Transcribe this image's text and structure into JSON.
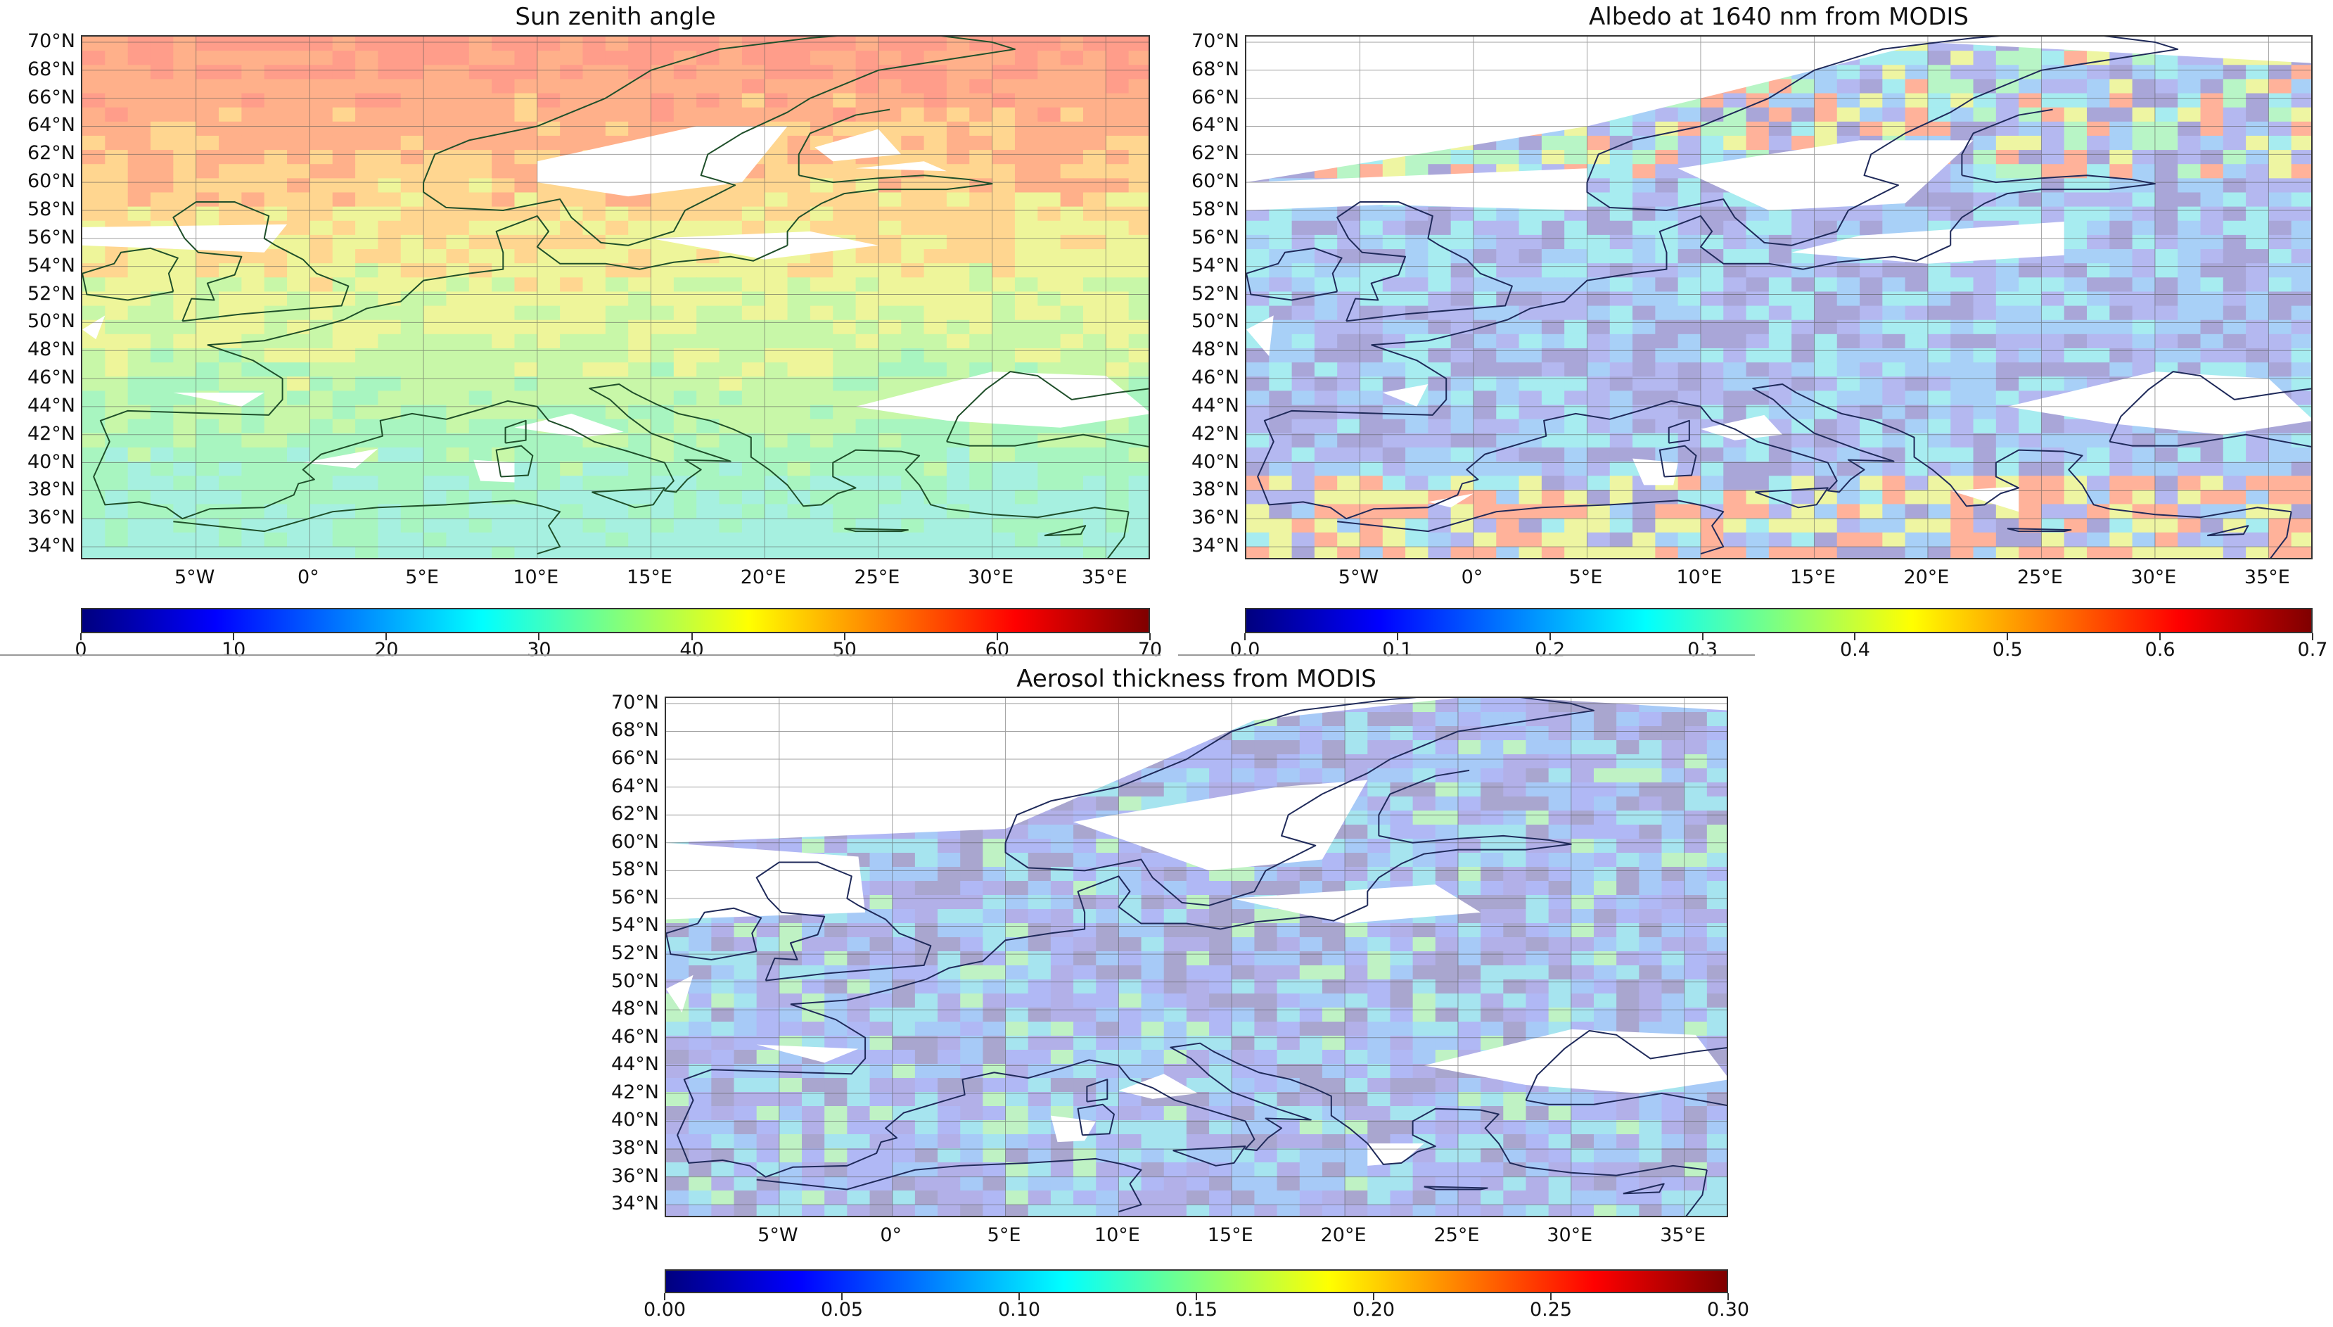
{
  "maps": [
    {
      "id": "sza",
      "title": "Sun zenith angle",
      "lat_labels": [
        "70°N",
        "68°N",
        "66°N",
        "64°N",
        "62°N",
        "60°N",
        "58°N",
        "56°N",
        "54°N",
        "52°N",
        "50°N",
        "48°N",
        "46°N",
        "44°N",
        "42°N",
        "40°N",
        "38°N",
        "36°N",
        "34°N"
      ],
      "lon_labels": [
        "5°W",
        "0°",
        "5°E",
        "10°E",
        "15°E",
        "20°E",
        "25°E",
        "30°E",
        "35°E"
      ],
      "colorbar": {
        "ticks": [
          "0",
          "10",
          "20",
          "30",
          "40",
          "50",
          "60",
          "70"
        ],
        "min": 0,
        "max": 70,
        "colormap": "jet"
      },
      "palette": [
        "#ff9d8a",
        "#ffb08a",
        "#ffd690",
        "#eef59a",
        "#c8f7a8",
        "#a8f5c0",
        "#a6f0e0",
        "#b9e4f7"
      ]
    },
    {
      "id": "albedo",
      "title": "Albedo at 1640 nm from MODIS",
      "lat_labels": [
        "70°N",
        "68°N",
        "66°N",
        "64°N",
        "62°N",
        "60°N",
        "58°N",
        "56°N",
        "54°N",
        "52°N",
        "50°N",
        "48°N",
        "46°N",
        "44°N",
        "42°N",
        "40°N",
        "38°N",
        "36°N",
        "34°N"
      ],
      "lon_labels": [
        "5°W",
        "0°",
        "5°E",
        "10°E",
        "15°E",
        "20°E",
        "25°E",
        "30°E",
        "35°E"
      ],
      "colorbar": {
        "ticks": [
          "0.0",
          "0.1",
          "0.2",
          "0.3",
          "0.4",
          "0.5",
          "0.6",
          "0.7"
        ],
        "min": 0,
        "max": 0.7,
        "colormap": "jet"
      },
      "palette": [
        "#a9a6d8",
        "#b4b8f0",
        "#a8d0f7",
        "#a7ecf0",
        "#b8f5c6",
        "#eef5a2",
        "#ffb29a",
        "#9db4f2"
      ]
    },
    {
      "id": "aerosol",
      "title": "Aerosol thickness from MODIS",
      "lat_labels": [
        "70°N",
        "68°N",
        "66°N",
        "64°N",
        "62°N",
        "60°N",
        "58°N",
        "56°N",
        "54°N",
        "52°N",
        "50°N",
        "48°N",
        "46°N",
        "44°N",
        "42°N",
        "40°N",
        "38°N",
        "36°N",
        "34°N"
      ],
      "lon_labels": [
        "5°W",
        "0°",
        "5°E",
        "10°E",
        "15°E",
        "20°E",
        "25°E",
        "30°E",
        "35°E"
      ],
      "colorbar": {
        "ticks": [
          "0.00",
          "0.05",
          "0.10",
          "0.15",
          "0.20",
          "0.25",
          "0.30"
        ],
        "min": 0,
        "max": 0.3,
        "colormap": "jet"
      },
      "palette": [
        "#a9a6cf",
        "#b2b0e8",
        "#b0b8f5",
        "#a7caf7",
        "#a6e4ef",
        "#bff2c4",
        "#a9a6cf",
        "#b4baf2"
      ]
    }
  ]
}
